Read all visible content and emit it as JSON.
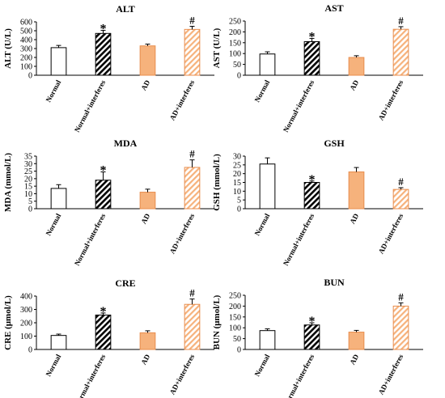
{
  "chart_data": [
    {
      "type": "bar",
      "title": "ALT",
      "ylabel": "ALT (U/L)",
      "ylim": [
        0,
        600
      ],
      "ticks": [
        0,
        100,
        200,
        300,
        400,
        500,
        600
      ],
      "categories": [
        "Normal",
        "Normal+interferes",
        "AD",
        "AD+interferes"
      ],
      "values": [
        310,
        470,
        330,
        515
      ],
      "errors": [
        25,
        35,
        20,
        35
      ],
      "marks": [
        "",
        "*",
        "",
        "#"
      ]
    },
    {
      "type": "bar",
      "title": "AST",
      "ylabel": "AST (U/L)",
      "ylim": [
        0,
        250
      ],
      "ticks": [
        0,
        50,
        100,
        150,
        200,
        250
      ],
      "categories": [
        "Normal",
        "Normal+interferes",
        "AD",
        "AD+interferes"
      ],
      "values": [
        98,
        155,
        82,
        212
      ],
      "errors": [
        10,
        15,
        8,
        12
      ],
      "marks": [
        "",
        "*",
        "",
        "#"
      ]
    },
    {
      "type": "bar",
      "title": "MDA",
      "ylabel": "MDA (mmol/L)",
      "ylim": [
        0,
        35
      ],
      "ticks": [
        0,
        5,
        10,
        15,
        20,
        25,
        30,
        35
      ],
      "categories": [
        "Normal",
        "Normal+interferes",
        "AD",
        "AD+interferes"
      ],
      "values": [
        13.5,
        19,
        11,
        27.5
      ],
      "errors": [
        2.5,
        5.5,
        2,
        5
      ],
      "marks": [
        "",
        "*",
        "",
        "#"
      ]
    },
    {
      "type": "bar",
      "title": "GSH",
      "ylabel": "GSH (mmol/L)",
      "ylim": [
        0,
        30
      ],
      "ticks": [
        0,
        5,
        10,
        15,
        20,
        25,
        30
      ],
      "categories": [
        "Normal",
        "Normal+interferes",
        "AD",
        "AD+interferes"
      ],
      "values": [
        25.5,
        15,
        21,
        11
      ],
      "errors": [
        3.5,
        0.8,
        2.5,
        1
      ],
      "marks": [
        "",
        "*",
        "",
        "#"
      ]
    },
    {
      "type": "bar",
      "title": "CRE",
      "ylabel": "CRE (μmol/L)",
      "ylim": [
        0,
        400
      ],
      "ticks": [
        0,
        100,
        200,
        300,
        400
      ],
      "categories": [
        "Normal",
        "Normal+interferes",
        "AD",
        "AD+interferes"
      ],
      "values": [
        105,
        258,
        125,
        338
      ],
      "errors": [
        10,
        15,
        15,
        40
      ],
      "marks": [
        "",
        "*",
        "",
        "#"
      ]
    },
    {
      "type": "bar",
      "title": "BUN",
      "ylabel": "BUN (μmol/L)",
      "ylim": [
        0,
        250
      ],
      "ticks": [
        0,
        50,
        100,
        150,
        200,
        250
      ],
      "categories": [
        "Normal",
        "Normal+interferes",
        "AD",
        "AD+interferes"
      ],
      "values": [
        87,
        113,
        80,
        200
      ],
      "errors": [
        8,
        10,
        8,
        15
      ],
      "marks": [
        "",
        "*",
        "",
        "#"
      ]
    }
  ],
  "colors": {
    "ad_fill": "#f6b27c",
    "ad_stroke": "#e88d4d",
    "hatch_black": "#000000",
    "hatch_orange": "#f6b27c"
  }
}
